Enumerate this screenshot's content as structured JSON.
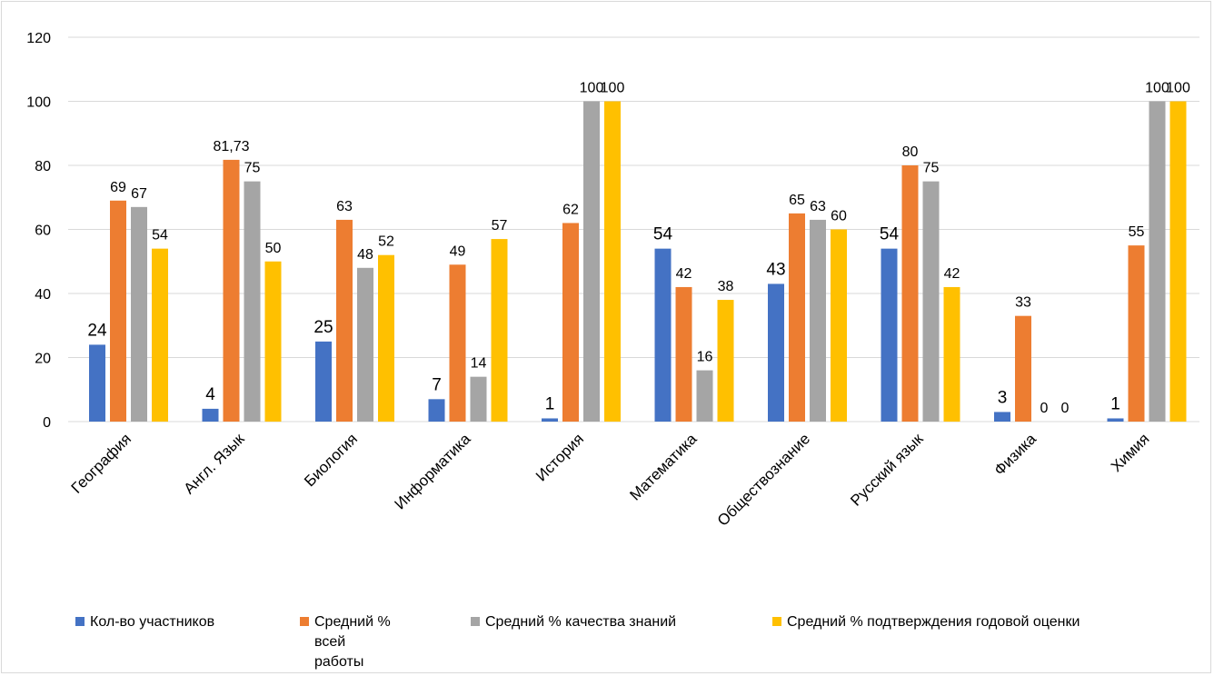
{
  "chart_data": {
    "type": "bar",
    "categories": [
      "География",
      "Англ. Язык",
      "Биология",
      "Информатика",
      "История",
      "Математика",
      "Обществознание",
      "Русский язык",
      "Физика",
      "Химия"
    ],
    "series": [
      {
        "name": "Кол-во участников",
        "color": "#4472c4",
        "values": [
          24,
          4,
          25,
          7,
          1,
          54,
          43,
          54,
          3,
          1
        ],
        "labels": [
          "24",
          "4",
          "25",
          "7",
          "1",
          "54",
          "43",
          "54",
          "3",
          "1"
        ]
      },
      {
        "name": "Средний %\nвсей\nработы",
        "color": "#ed7d31",
        "values": [
          69,
          81.73,
          63,
          49,
          62,
          42,
          65,
          80,
          33,
          55
        ],
        "labels": [
          "69",
          "81,73",
          "63",
          "49",
          "62",
          "42",
          "65",
          "80",
          "33",
          "55"
        ]
      },
      {
        "name": "Средний % качества знаний",
        "color": "#a5a5a5",
        "values": [
          67,
          75,
          48,
          14,
          100,
          16,
          63,
          75,
          0,
          100
        ],
        "labels": [
          "67",
          "75",
          "48",
          "14",
          "100",
          "16",
          "63",
          "75",
          "0",
          "100"
        ]
      },
      {
        "name": "Средний % подтверждения годовой оценки",
        "color": "#ffc000",
        "values": [
          54,
          50,
          52,
          57,
          100,
          38,
          60,
          42,
          0,
          100
        ],
        "labels": [
          "54",
          "50",
          "52",
          "57",
          "100",
          "38",
          "60",
          "42",
          "0",
          "100"
        ]
      }
    ],
    "ylim": [
      0,
      120
    ],
    "yticks": [
      "0",
      "20",
      "40",
      "60",
      "80",
      "100",
      "120"
    ],
    "grid": true,
    "legend_position": "bottom"
  }
}
